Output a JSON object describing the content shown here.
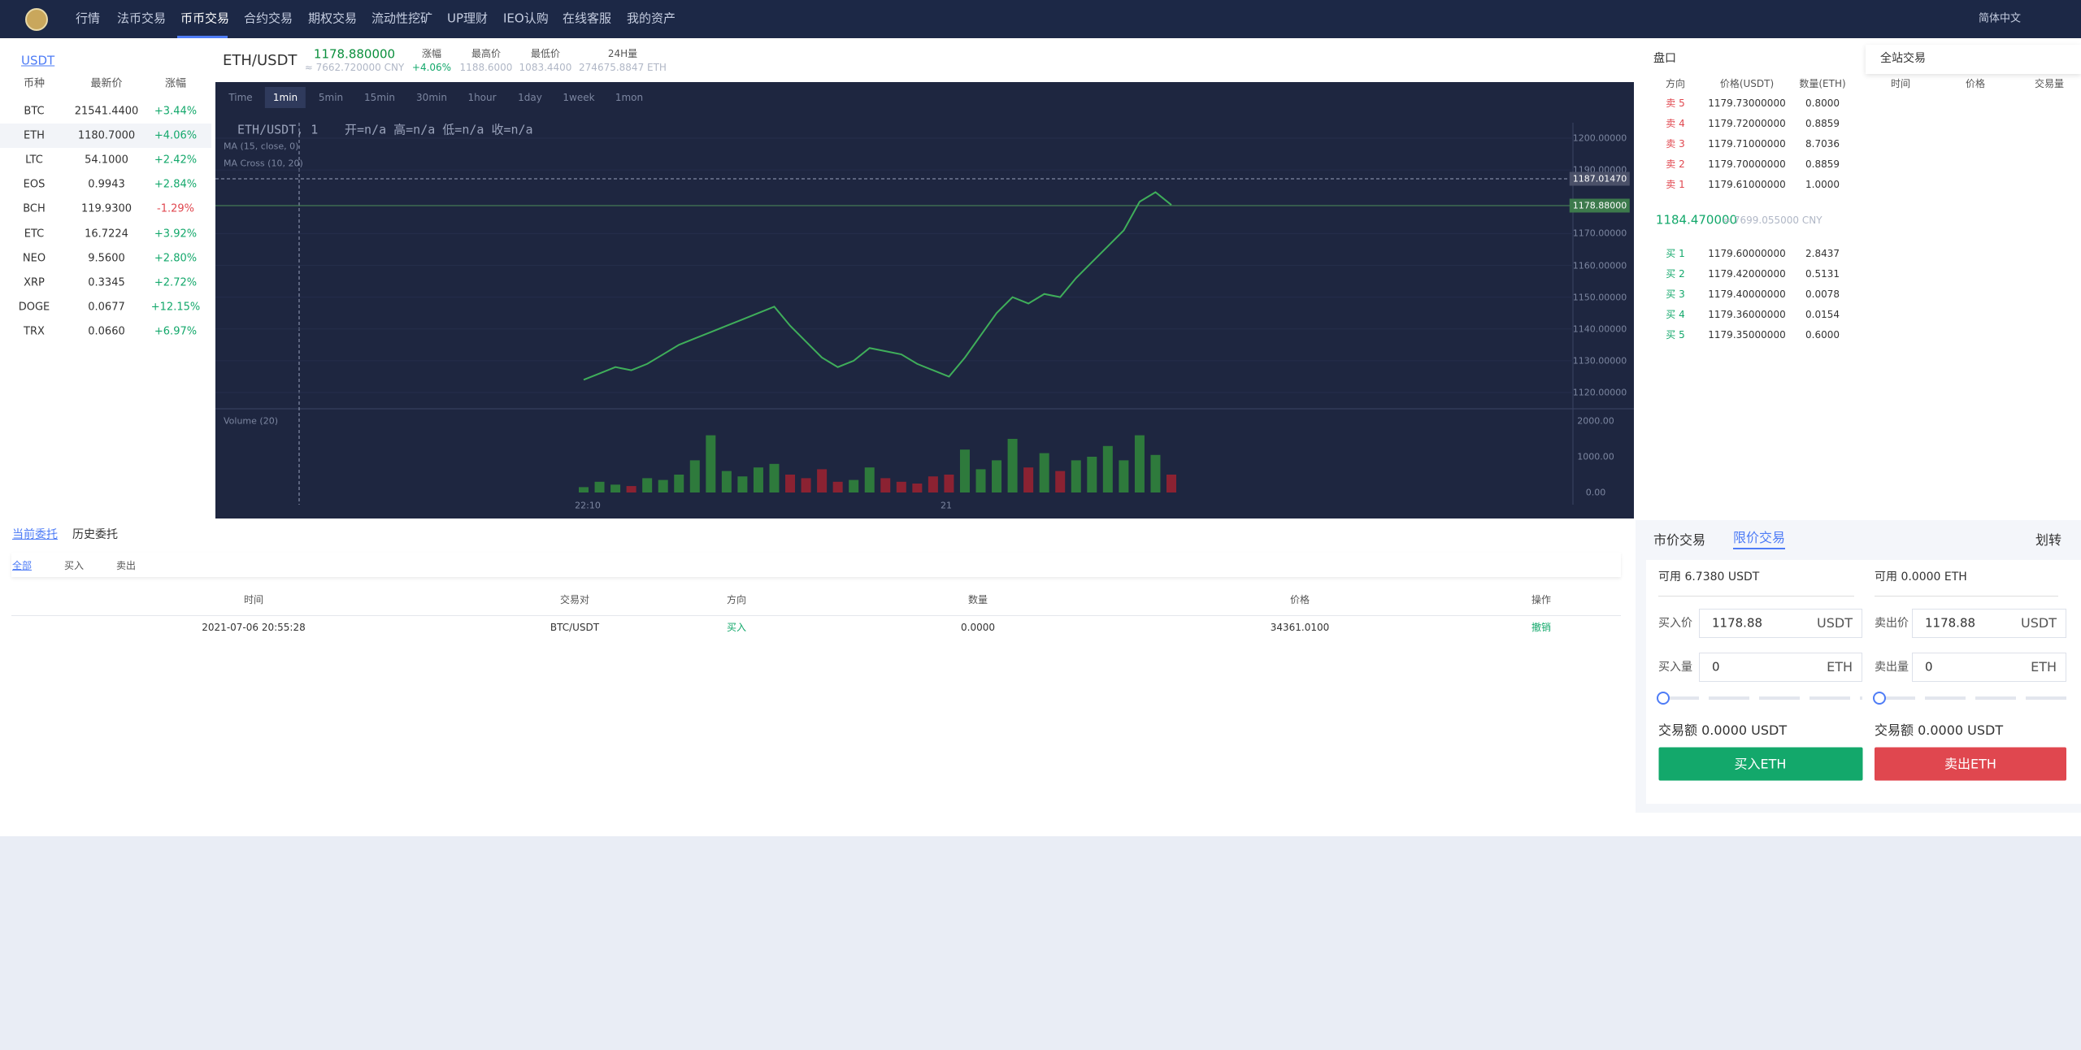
{
  "nav": {
    "items": [
      "行情",
      "法币交易",
      "币币交易",
      "合约交易",
      "期权交易",
      "流动性挖矿",
      "UP理财",
      "IEO认购",
      "在线客服",
      "我的资产"
    ],
    "language": "简体中文"
  },
  "market": {
    "tab": "USDT",
    "headers": [
      "币种",
      "最新价",
      "涨幅"
    ],
    "rows": [
      [
        "BTC",
        "21541.4400",
        "+3.44%"
      ],
      [
        "ETH",
        "1180.7000",
        "+4.06%"
      ],
      [
        "LTC",
        "54.1000",
        "+2.42%"
      ],
      [
        "EOS",
        "0.9943",
        "+2.84%"
      ],
      [
        "BCH",
        "119.9300",
        "-1.29%"
      ],
      [
        "ETC",
        "16.7224",
        "+3.92%"
      ],
      [
        "NEO",
        "9.5600",
        "+2.80%"
      ],
      [
        "XRP",
        "0.3345",
        "+2.72%"
      ],
      [
        "DOGE",
        "0.0677",
        "+12.15%"
      ],
      [
        "TRX",
        "0.0660",
        "+6.97%"
      ]
    ]
  },
  "pair": {
    "name": "ETH/USDT",
    "price": "1178.880000",
    "cny": "≈ 7662.720000 CNY",
    "change_label": "涨幅",
    "change": "+4.06%",
    "high_label": "最高价",
    "high": "1188.6000",
    "low_label": "最低价",
    "low": "1083.4400",
    "vol_label": "24H量",
    "vol": "274675.8847 ETH"
  },
  "chart": {
    "intervals": [
      "Time",
      "1min",
      "5min",
      "15min",
      "30min",
      "1hour",
      "1day",
      "1week",
      "1mon"
    ],
    "legend": "ETH/USDT, 1",
    "ohlc": "开=n/a  高=n/a  低=n/a  收=n/a",
    "ma": "MA (15, close, 0)",
    "ma_cross": "MA Cross (10, 20)",
    "volume": "Volume (20)",
    "price_ticks": [
      "1200.00000",
      "1190.00000",
      "1170.00000",
      "1160.00000",
      "1150.00000",
      "1140.00000",
      "1130.00000",
      "1120.00000"
    ],
    "price_tags": [
      "1187.01470",
      "1178.88000"
    ],
    "volume_ticks": [
      "2000.00",
      "1000.00",
      "0.00"
    ],
    "time_ticks": [
      "22:10",
      "21"
    ],
    "closes": [
      1124,
      1126,
      1128,
      1127,
      1129,
      1132,
      1135,
      1137,
      1139,
      1141,
      1143,
      1145,
      1147,
      1141,
      1136,
      1131,
      1128,
      1130,
      1134,
      1133,
      1132,
      1129,
      1127,
      1125,
      1131,
      1138,
      1145,
      1150,
      1148,
      1151,
      1150,
      1156,
      1161,
      1166,
      1171,
      1180,
      1183,
      1179
    ],
    "volumes": [
      150,
      300,
      220,
      180,
      400,
      350,
      500,
      900,
      1600,
      600,
      450,
      700,
      800,
      500,
      400,
      650,
      300,
      350,
      700,
      400,
      300,
      250,
      450,
      500,
      1200,
      650,
      900,
      1500,
      700,
      1100,
      600,
      900,
      1000,
      1300,
      900,
      1600,
      1050,
      500
    ]
  },
  "orderbook": {
    "title": "盘口",
    "headers": [
      "方向",
      "价格(USDT)",
      "数量(ETH)"
    ],
    "asks": [
      [
        "卖 5",
        "1179.73000000",
        "0.8000"
      ],
      [
        "卖 4",
        "1179.72000000",
        "0.8859"
      ],
      [
        "卖 3",
        "1179.71000000",
        "8.7036"
      ],
      [
        "卖 2",
        "1179.70000000",
        "0.8859"
      ],
      [
        "卖 1",
        "1179.61000000",
        "1.0000"
      ]
    ],
    "last": "1184.470000",
    "last_cny": "≈ 7699.055000 CNY",
    "bids": [
      [
        "买 1",
        "1179.60000000",
        "2.8437"
      ],
      [
        "买 2",
        "1179.42000000",
        "0.5131"
      ],
      [
        "买 3",
        "1179.40000000",
        "0.0078"
      ],
      [
        "买 4",
        "1179.36000000",
        "0.0154"
      ],
      [
        "买 5",
        "1179.35000000",
        "0.6000"
      ]
    ]
  },
  "trades": {
    "title": "全站交易",
    "headers": [
      "时间",
      "价格",
      "交易量"
    ]
  },
  "orders": {
    "tabs": [
      "当前委托",
      "历史委托"
    ],
    "filters": [
      "全部",
      "买入",
      "卖出"
    ],
    "headers": [
      "时间",
      "交易对",
      "方向",
      "数量",
      "价格",
      "操作"
    ],
    "rows": [
      [
        "2021-07-06 20:55:28",
        "BTC/USDT",
        "买入",
        "0.0000",
        "34361.0100",
        "撤销"
      ]
    ]
  },
  "trade": {
    "tabs": [
      "市价交易",
      "限价交易"
    ],
    "transfer": "划转",
    "buy": {
      "available": "可用 6.7380 USDT",
      "price_label": "买入价",
      "price": "1178.88",
      "price_unit": "USDT",
      "amount_label": "买入量",
      "amount": "0",
      "amount_unit": "ETH",
      "total": "交易额 0.0000 USDT",
      "button": "买入ETH"
    },
    "sell": {
      "available": "可用 0.0000 ETH",
      "price_label": "卖出价",
      "price": "1178.88",
      "price_unit": "USDT",
      "amount_label": "卖出量",
      "amount": "0",
      "amount_unit": "ETH",
      "total": "交易额 0.0000 USDT",
      "button": "卖出ETH"
    }
  }
}
